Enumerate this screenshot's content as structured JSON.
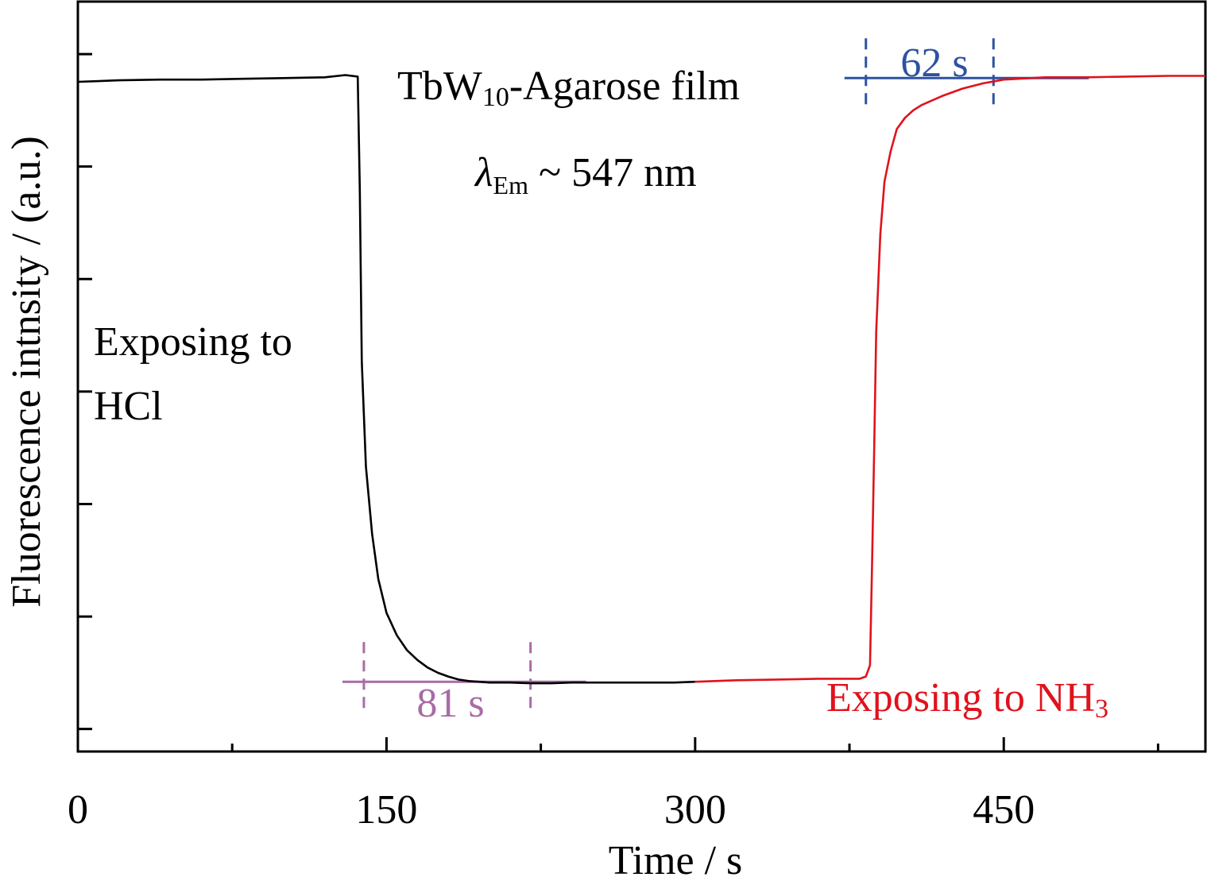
{
  "chart_data": {
    "type": "line",
    "xlabel": "Time / s",
    "ylabel": "Fluorescence intnsity / (a.u.)",
    "xlim": [
      0,
      548
    ],
    "xticks": [
      0,
      150,
      300,
      450
    ],
    "xtick_labels": [
      "0",
      "150",
      "300",
      "450"
    ],
    "xminor_step": 75,
    "ylim": [
      0,
      1
    ],
    "yticks": [
      0.03,
      0.18,
      0.33,
      0.48,
      0.63,
      0.78,
      0.93
    ],
    "ytick_labels": [],
    "grid": false,
    "legend": "none",
    "series": [
      {
        "color": "#000000",
        "x": [
          0,
          20,
          40,
          60,
          80,
          100,
          120,
          130,
          136,
          137,
          138,
          140,
          143,
          146,
          150,
          155,
          160,
          165,
          170,
          175,
          180,
          185,
          190,
          195,
          200,
          210,
          220,
          230,
          240,
          250,
          260,
          270,
          280,
          290,
          300
        ],
        "y": [
          0.893,
          0.895,
          0.896,
          0.896,
          0.897,
          0.898,
          0.899,
          0.902,
          0.9,
          0.75,
          0.52,
          0.38,
          0.29,
          0.23,
          0.185,
          0.155,
          0.135,
          0.122,
          0.112,
          0.105,
          0.1,
          0.096,
          0.094,
          0.093,
          0.092,
          0.092,
          0.091,
          0.091,
          0.092,
          0.092,
          0.092,
          0.092,
          0.092,
          0.092,
          0.093
        ]
      },
      {
        "color": "#e0121c",
        "x": [
          300,
          320,
          340,
          360,
          375,
          380,
          383,
          385,
          386,
          387,
          388,
          390,
          392,
          395,
          398,
          402,
          406,
          410,
          420,
          430,
          440,
          450,
          470,
          490,
          510,
          530,
          548
        ],
        "y": [
          0.093,
          0.095,
          0.096,
          0.097,
          0.097,
          0.097,
          0.1,
          0.115,
          0.25,
          0.4,
          0.56,
          0.69,
          0.76,
          0.8,
          0.83,
          0.845,
          0.855,
          0.862,
          0.874,
          0.884,
          0.891,
          0.896,
          0.899,
          0.899,
          0.9,
          0.901,
          0.901
        ]
      }
    ],
    "annotations": {
      "title_main": "TbW",
      "title_sub": "10",
      "title_rest": "-Agarose film",
      "lambda": "λ",
      "lambda_sub": "Em",
      "lambda_rest": " ~ 547 nm",
      "hcl_line1": "Exposing to",
      "hcl_line2": "HCl",
      "nh3_main": "Exposing to NH",
      "nh3_sub": "3",
      "span_fall": {
        "text": "81 s",
        "start": 139,
        "end": 220,
        "level": 0.093,
        "color": "#a86ca6"
      },
      "span_rise": {
        "text": "62 s",
        "start": 383,
        "end": 445,
        "level": 0.898,
        "color": "#2e52a0"
      }
    }
  }
}
